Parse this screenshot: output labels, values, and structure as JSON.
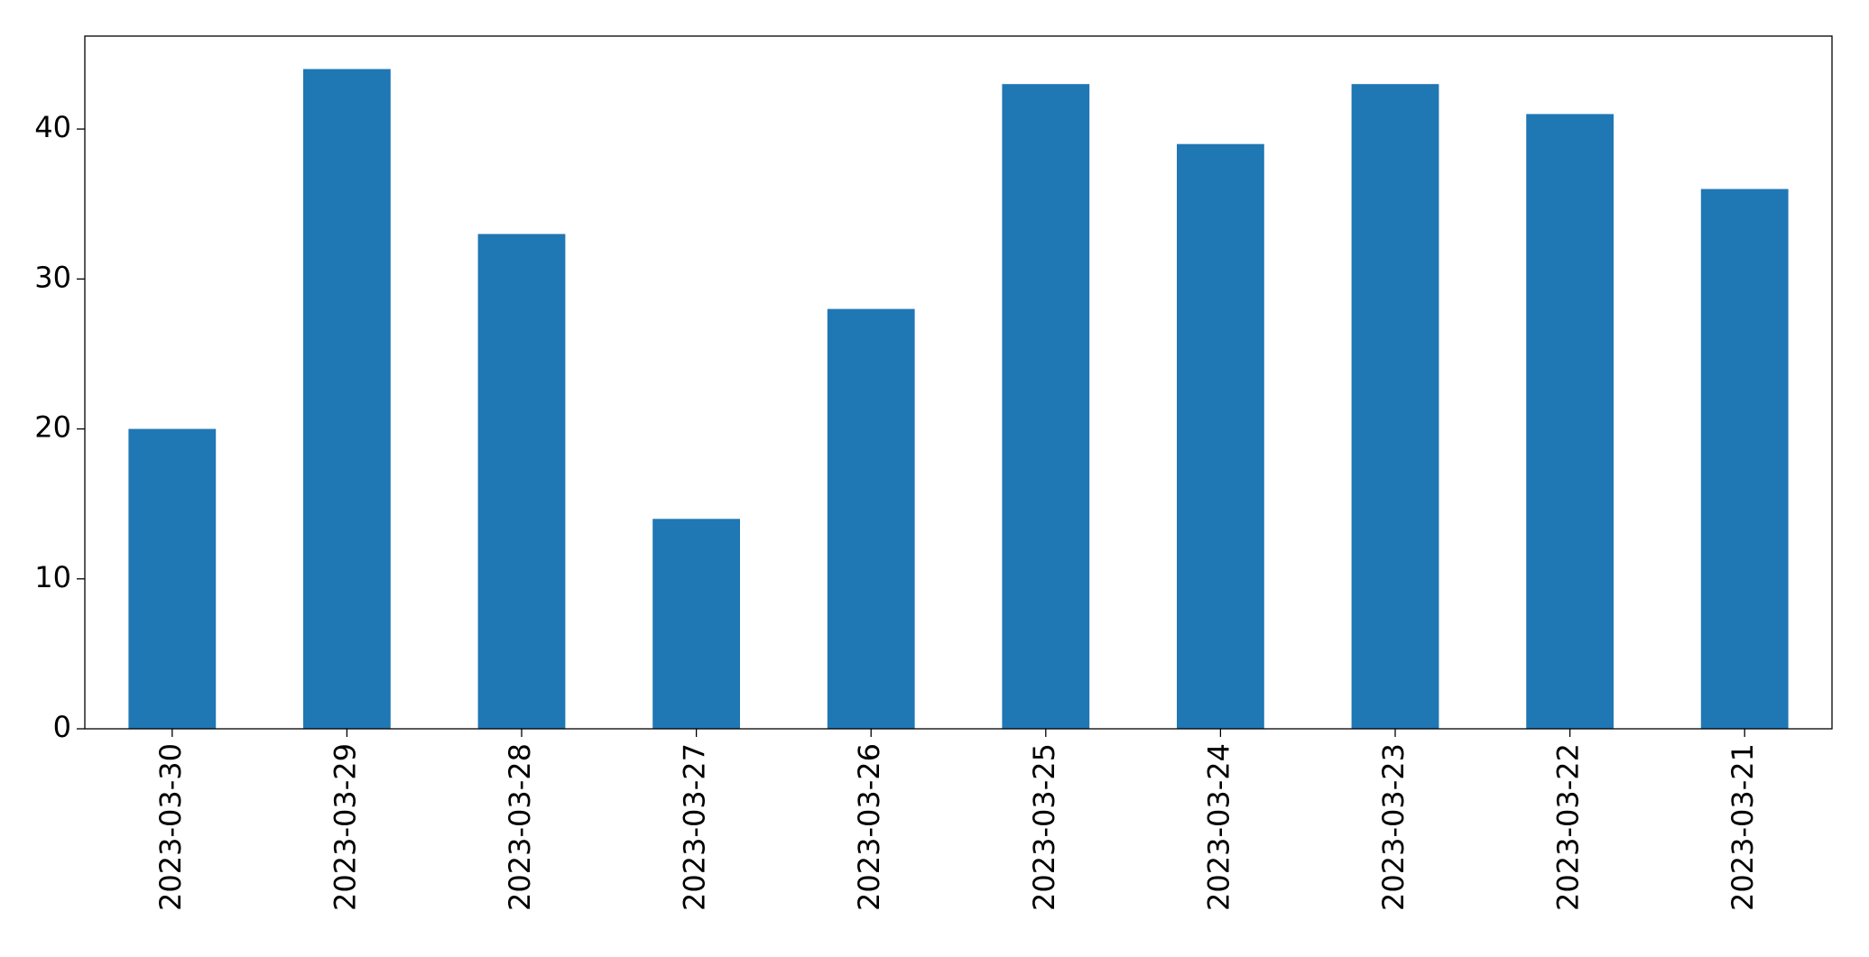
{
  "chart_data": {
    "type": "bar",
    "categories": [
      "2023-03-30",
      "2023-03-29",
      "2023-03-28",
      "2023-03-27",
      "2023-03-26",
      "2023-03-25",
      "2023-03-24",
      "2023-03-23",
      "2023-03-22",
      "2023-03-21"
    ],
    "values": [
      20,
      44,
      33,
      14,
      28,
      43,
      39,
      43,
      41,
      36
    ],
    "color": "#1f77b4",
    "ylim": [
      0,
      46.2
    ],
    "yticks": [
      0,
      10,
      20,
      30,
      40
    ],
    "grid": false
  }
}
